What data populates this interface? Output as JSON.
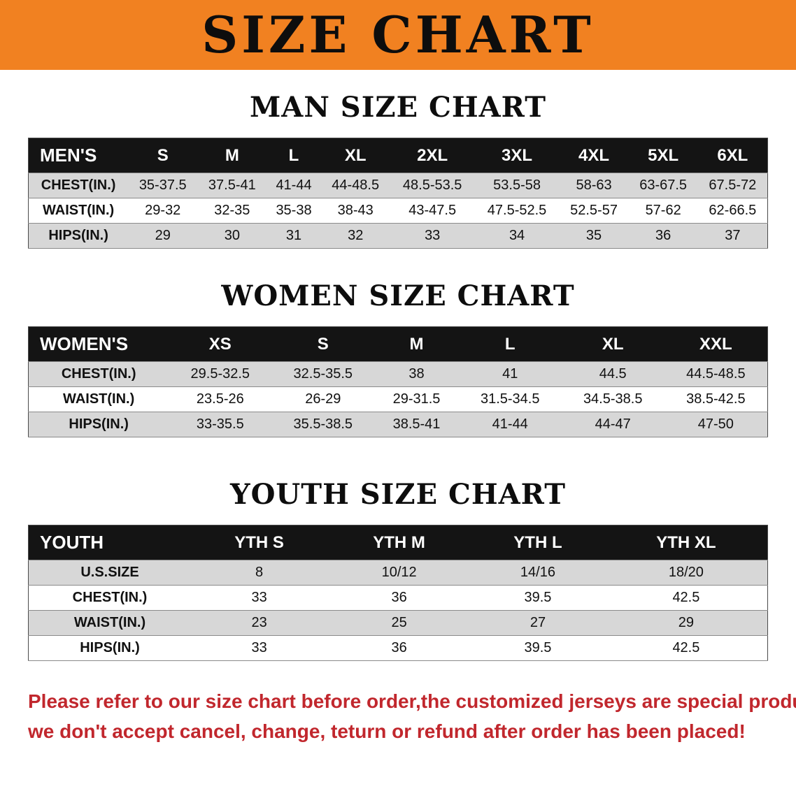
{
  "banner": {
    "title": "SIZE CHART",
    "bg_color": "#f18121"
  },
  "tables": {
    "men": {
      "title": "MAN SIZE CHART",
      "header": [
        "MEN'S",
        "S",
        "M",
        "L",
        "XL",
        "2XL",
        "3XL",
        "4XL",
        "5XL",
        "6XL"
      ],
      "rows": [
        [
          "CHEST(IN.)",
          "35-37.5",
          "37.5-41",
          "41-44",
          "44-48.5",
          "48.5-53.5",
          "53.5-58",
          "58-63",
          "63-67.5",
          "67.5-72"
        ],
        [
          "WAIST(IN.)",
          "29-32",
          "32-35",
          "35-38",
          "38-43",
          "43-47.5",
          "47.5-52.5",
          "52.5-57",
          "57-62",
          "62-66.5"
        ],
        [
          "HIPS(IN.)",
          "29",
          "30",
          "31",
          "32",
          "33",
          "34",
          "35",
          "36",
          "37"
        ]
      ]
    },
    "women": {
      "title": "WOMEN SIZE CHART",
      "header": [
        "WOMEN'S",
        "XS",
        "S",
        "M",
        "L",
        "XL",
        "XXL"
      ],
      "rows": [
        [
          "CHEST(IN.)",
          "29.5-32.5",
          "32.5-35.5",
          "38",
          "41",
          "44.5",
          "44.5-48.5"
        ],
        [
          "WAIST(IN.)",
          "23.5-26",
          "26-29",
          "29-31.5",
          "31.5-34.5",
          "34.5-38.5",
          "38.5-42.5"
        ],
        [
          "HIPS(IN.)",
          "33-35.5",
          "35.5-38.5",
          "38.5-41",
          "41-44",
          "44-47",
          "47-50"
        ]
      ]
    },
    "youth": {
      "title": "YOUTH SIZE CHART",
      "header": [
        "YOUTH",
        "YTH S",
        "YTH M",
        "YTH L",
        "YTH XL"
      ],
      "rows": [
        [
          "U.S.SIZE",
          "8",
          "10/12",
          "14/16",
          "18/20"
        ],
        [
          "CHEST(IN.)",
          "33",
          "36",
          "39.5",
          "42.5"
        ],
        [
          "WAIST(IN.)",
          "23",
          "25",
          "27",
          "29"
        ],
        [
          "HIPS(IN.)",
          "33",
          "36",
          "39.5",
          "42.5"
        ]
      ]
    }
  },
  "footer_note": {
    "line1": "Please refer to our size chart before order,the customized jerseys are special products,",
    "line2": "we don't accept cancel, change, teturn or refund after order has been placed!",
    "color": "#c1272d"
  }
}
